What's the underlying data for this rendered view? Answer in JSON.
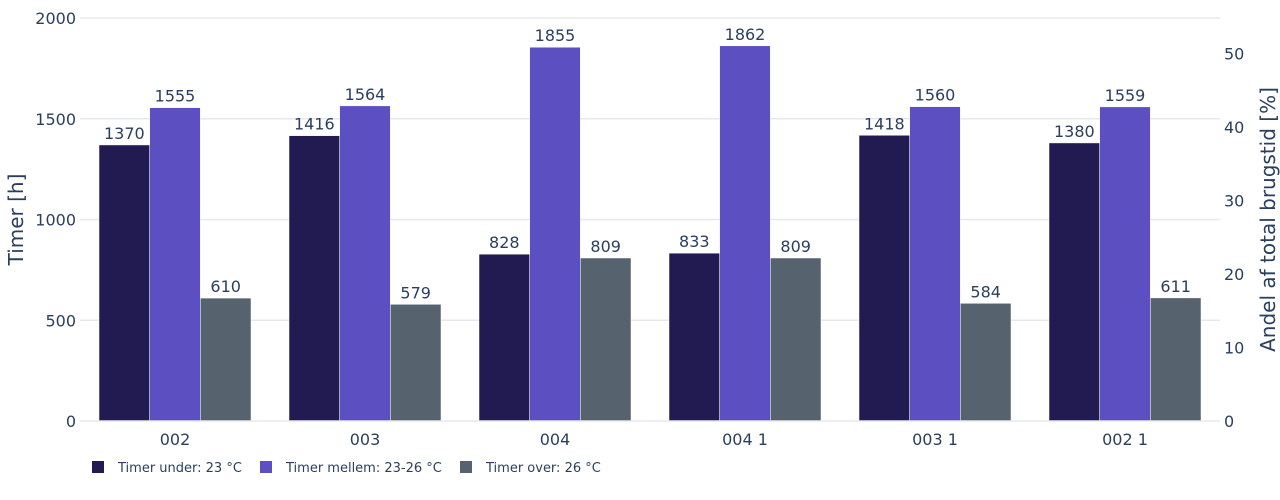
{
  "chart_data": {
    "type": "bar",
    "categories": [
      "002",
      "003",
      "004",
      "004 1",
      "003 1",
      "002 1"
    ],
    "series": [
      {
        "name": "Timer under: 23 °C",
        "color": "#221b52",
        "values": [
          1370,
          1416,
          828,
          833,
          1418,
          1380
        ]
      },
      {
        "name": "Timer mellem: 23-26 °C",
        "color": "#5b4fc1",
        "values": [
          1555,
          1564,
          1855,
          1862,
          1560,
          1559
        ]
      },
      {
        "name": "Timer over: 26 °C",
        "color": "#56636f",
        "values": [
          610,
          579,
          809,
          809,
          584,
          611
        ]
      }
    ],
    "data_labels": [
      [
        "1370",
        "1416",
        "828",
        "833",
        "1418",
        "1380"
      ],
      [
        "1555",
        "1564",
        "1855",
        "1862",
        "1560",
        "1559"
      ],
      [
        "610",
        "579",
        "809",
        "809",
        "584",
        "611"
      ]
    ],
    "ylabel": "Timer [h]",
    "ylim": [
      0,
      2000
    ],
    "yticks": [
      0,
      500,
      1000,
      1500,
      2000
    ],
    "ytick_labels": [
      "0",
      "500",
      "1000",
      "1500",
      "2000"
    ],
    "y2label": "Andel af total brugstid [%]",
    "y2lim": [
      0,
      54.8
    ],
    "y2ticks": [
      0,
      10,
      20,
      30,
      40,
      50
    ],
    "y2tick_labels": [
      "0",
      "10",
      "20",
      "30",
      "40",
      "50"
    ],
    "grid": true,
    "legend_position": "bottom-left"
  }
}
